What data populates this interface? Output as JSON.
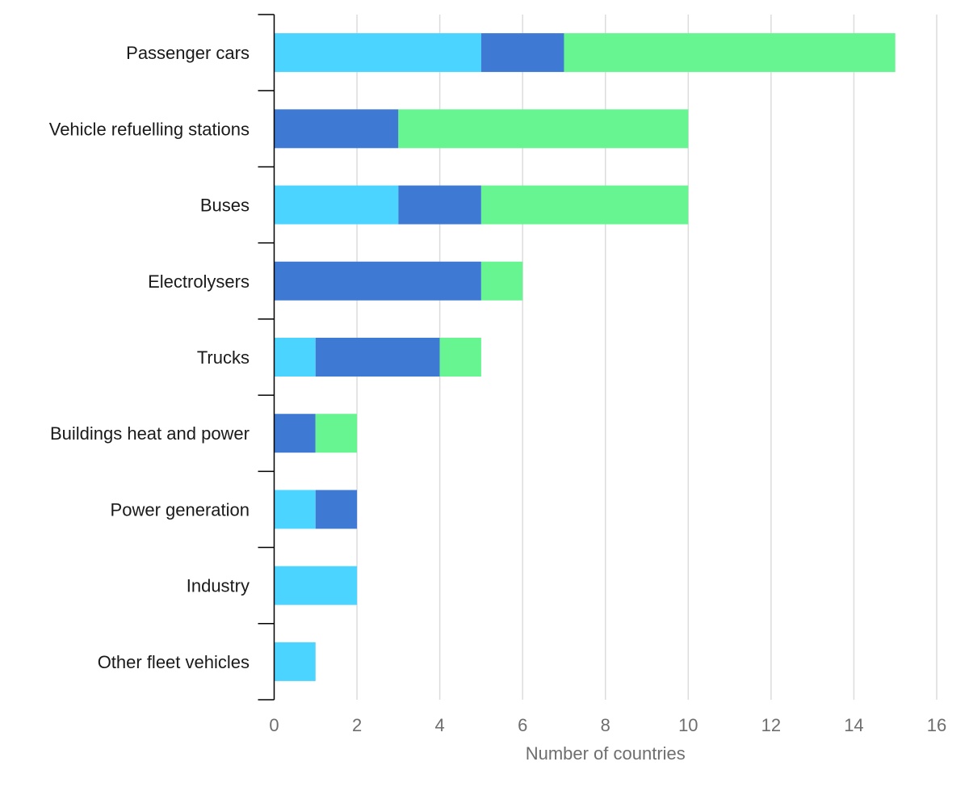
{
  "chart_data": {
    "type": "bar",
    "orientation": "horizontal",
    "stacked": true,
    "categories": [
      "Passenger cars",
      "Vehicle refuelling stations",
      "Buses",
      "Electrolysers",
      "Trucks",
      "Buildings heat and power",
      "Power generation",
      "Industry",
      "Other fleet vehicles"
    ],
    "series": [
      {
        "values": [
          5,
          0,
          3,
          0,
          1,
          0,
          1,
          2,
          1
        ],
        "color": "#4ad4ff"
      },
      {
        "values": [
          2,
          3,
          2,
          5,
          3,
          1,
          1,
          0,
          0
        ],
        "color": "#3e7ad3"
      },
      {
        "values": [
          8,
          7,
          5,
          1,
          1,
          1,
          0,
          0,
          0
        ],
        "color": "#66f591"
      }
    ],
    "xlabel": "Number of countries",
    "ylabel": "",
    "xlim": [
      0,
      16
    ],
    "xticks": [
      0,
      2,
      4,
      6,
      8,
      10,
      12,
      14,
      16
    ],
    "grid": "vertical",
    "legend": "none"
  }
}
